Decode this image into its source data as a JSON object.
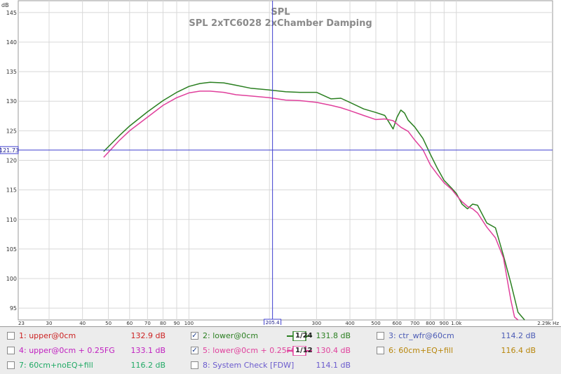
{
  "chart_data": {
    "type": "line",
    "title": "SPL",
    "subtitle": "SPL 2xTC6028 2xChamber Damping",
    "ylabel": "dB",
    "ylim": [
      93,
      147
    ],
    "y_ticks": [
      95,
      100,
      105,
      110,
      115,
      120,
      125,
      130,
      135,
      140,
      145
    ],
    "y_tick_labels": [
      "95",
      "100",
      "105",
      "110",
      "115",
      "120",
      "125",
      "130",
      "135",
      "140",
      "145"
    ],
    "xlim": [
      23,
      2290
    ],
    "x_scale": "log",
    "x_ticks": [
      23,
      30,
      40,
      50,
      60,
      70,
      80,
      90,
      100,
      200,
      300,
      400,
      500,
      600,
      700,
      800,
      900,
      1000,
      2290
    ],
    "x_tick_labels": [
      "23",
      "30",
      "40",
      "50",
      "60",
      "70",
      "80",
      "90",
      "100",
      "200",
      "300",
      "400",
      "500",
      "600",
      "700",
      "800",
      "900",
      "1.0k",
      "2.29k Hz"
    ],
    "cursor": {
      "x": 205.4,
      "y": 121.73,
      "x_label": "205.4",
      "y_label": "121.73"
    },
    "grid": true,
    "series": [
      {
        "name": "2: lower@0cm",
        "color": "#2a7f20",
        "x": [
          48,
          55,
          60,
          70,
          80,
          90,
          100,
          110,
          120,
          135,
          150,
          170,
          200,
          230,
          260,
          300,
          340,
          370,
          400,
          450,
          500,
          540,
          580,
          600,
          620,
          640,
          660,
          700,
          750,
          800,
          850,
          900,
          960,
          1000,
          1050,
          1100,
          1150,
          1200,
          1300,
          1400,
          1500,
          1600,
          1700,
          1800
        ],
        "values": [
          121.5,
          124.2,
          125.8,
          128.2,
          130.1,
          131.5,
          132.5,
          133.0,
          133.2,
          133.1,
          132.7,
          132.2,
          131.9,
          131.6,
          131.5,
          131.5,
          130.4,
          130.5,
          129.8,
          128.7,
          128.1,
          127.6,
          125.3,
          127.3,
          128.5,
          128.0,
          126.8,
          125.6,
          123.7,
          121.0,
          118.6,
          116.6,
          115.3,
          114.4,
          112.6,
          111.8,
          112.6,
          112.4,
          109.4,
          108.6,
          103.9,
          99.2,
          94.3,
          91
        ]
      },
      {
        "name": "5: lower@0cm + 0.25FG",
        "color": "#e0409c",
        "x": [
          48,
          55,
          60,
          70,
          80,
          90,
          100,
          110,
          120,
          135,
          150,
          170,
          200,
          230,
          260,
          300,
          340,
          370,
          400,
          450,
          500,
          540,
          580,
          620,
          660,
          700,
          750,
          800,
          850,
          900,
          960,
          1000,
          1050,
          1100,
          1150,
          1200,
          1300,
          1400,
          1500,
          1600,
          1650,
          1700
        ],
        "values": [
          120.5,
          123.4,
          125.0,
          127.3,
          129.3,
          130.6,
          131.4,
          131.7,
          131.7,
          131.5,
          131.1,
          130.9,
          130.6,
          130.2,
          130.1,
          129.8,
          129.3,
          128.9,
          128.4,
          127.6,
          126.9,
          127.0,
          126.7,
          125.6,
          124.9,
          123.4,
          121.8,
          119.2,
          117.6,
          116.2,
          115.1,
          114.1,
          113.0,
          112.2,
          111.8,
          111.1,
          108.7,
          106.9,
          103.5,
          96.3,
          93.5,
          91
        ]
      }
    ]
  },
  "legend": {
    "rows": [
      [
        {
          "label": "1: upper@0cm",
          "value": "132.9 dB",
          "color": "#cc2222",
          "checked": "",
          "smoothing": ""
        },
        {
          "label": "2: lower@0cm",
          "value": "131.8 dB",
          "color": "#2a7f20",
          "checked": "✓",
          "smoothing": "1/24"
        },
        {
          "label": "3: ctr_wfr@60cm",
          "value": "114.2 dB",
          "color": "#4b5bb5",
          "checked": "",
          "smoothing": ""
        }
      ],
      [
        {
          "label": "4: upper@0cm + 0.25FG",
          "value": "133.1 dB",
          "color": "#c020c0",
          "checked": "",
          "smoothing": ""
        },
        {
          "label": "5: lower@0cm + 0.25FG",
          "value": "130.4 dB",
          "color": "#e0409c",
          "checked": "✓",
          "smoothing": "1/12"
        },
        {
          "label": "6: 60cm+EQ+fill",
          "value": "116.4 dB",
          "color": "#b8860b",
          "checked": "",
          "smoothing": ""
        }
      ],
      [
        {
          "label": "7: 60cm+noEQ+fill",
          "value": "116.2 dB",
          "color": "#22aa66",
          "checked": "",
          "smoothing": ""
        },
        {
          "label": "8: System Check [FDW]",
          "value": "114.1 dB",
          "color": "#6a5acd",
          "checked": "",
          "smoothing": ""
        }
      ]
    ]
  }
}
